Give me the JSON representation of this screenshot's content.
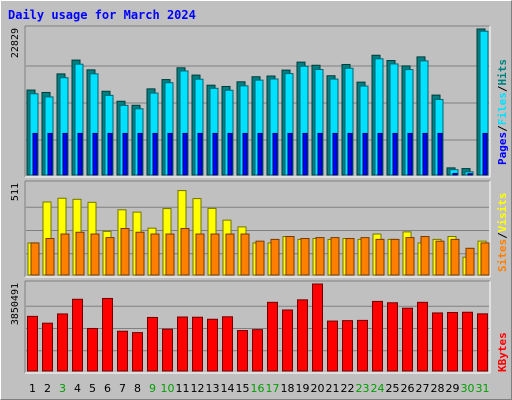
{
  "chart_data": {
    "type": "bar",
    "title": "Daily usage for March 2024",
    "categories": [
      "1",
      "2",
      "3",
      "4",
      "5",
      "6",
      "7",
      "8",
      "9",
      "10",
      "11",
      "12",
      "13",
      "14",
      "15",
      "16",
      "17",
      "18",
      "19",
      "20",
      "21",
      "22",
      "23",
      "24",
      "25",
      "26",
      "27",
      "28",
      "29",
      "30",
      "31"
    ],
    "weekend_days": [
      "3",
      "9",
      "10",
      "16",
      "17",
      "23",
      "24",
      "30",
      "31"
    ],
    "panels": [
      {
        "name": "hits_files_pages",
        "axis_max_label": "22829",
        "ymax": 22829,
        "series": [
          {
            "name": "Hits",
            "color": "#008080",
            "values": [
              13280,
              12906,
              15810,
              17968,
              16442,
              13093,
              11529,
              10905,
              13467,
              14920,
              16763,
              15623,
              14041,
              13842,
              14574,
              15365,
              15477,
              16403,
              17649,
              17158,
              15522,
              17283,
              14522,
              18723,
              17899,
              17059,
              18469,
              12495,
              1115,
              1003,
              22829
            ]
          },
          {
            "name": "Files",
            "color": "#00e0ff",
            "values": [
              12706,
              12209,
              15213,
              17323,
              15821,
              12446,
              10885,
              10352,
              12808,
              14423,
              16266,
              14978,
              13554,
              13245,
              13938,
              14834,
              15012,
              15855,
              17003,
              16491,
              14995,
              16686,
              13903,
              18166,
              17365,
              16479,
              17841,
              11805,
              836,
              502,
              22481
            ]
          },
          {
            "name": "Pages",
            "color": "#0000ff",
            "values": [
              6500,
              6500,
              6500,
              6500,
              6500,
              6500,
              6500,
              6500,
              6500,
              6500,
              6500,
              6500,
              6500,
              6500,
              6500,
              6500,
              6500,
              6500,
              6500,
              6500,
              6500,
              6500,
              6500,
              6500,
              6500,
              6500,
              6500,
              6500,
              240,
              200,
              6500
            ]
          }
        ]
      },
      {
        "name": "visits_sites",
        "axis_max_label": "511",
        "ymax": 511,
        "series": [
          {
            "name": "Visits",
            "color": "#ffff00",
            "values": [
              180,
              410,
              431,
              425,
              408,
              245,
              366,
              353,
              263,
              373,
              474,
              429,
              374,
              308,
              270,
              180,
              180,
              216,
              200,
              205,
              200,
              205,
              200,
              230,
              200,
              242,
              180,
              200,
              216,
              100,
              190
            ]
          },
          {
            "name": "Sites",
            "color": "#ff8000",
            "values": [
              180,
              205,
              230,
              240,
              230,
              210,
              261,
              240,
              230,
              230,
              261,
              230,
              230,
              230,
              230,
              190,
              200,
              216,
              205,
              210,
              210,
              205,
              210,
              200,
              200,
              210,
              216,
              190,
              200,
              150,
              180
            ]
          }
        ]
      },
      {
        "name": "kbytes",
        "axis_max_label": "3850491",
        "ymax": 3850491,
        "series": [
          {
            "name": "KBytes",
            "color": "#ff0000",
            "values": [
              2418140,
              2116101,
              2526112,
              3174120,
              1882121,
              3210100,
              1760000,
              1700000,
              2370000,
              1850000,
              2390000,
              2380000,
              2290000,
              2400000,
              1790000,
              1830000,
              3040000,
              2700000,
              3150000,
              3850491,
              2210000,
              2230000,
              2240000,
              3080000,
              3020000,
              2780000,
              3040000,
              2570000,
              2590000,
              2600000,
              2530000
            ]
          }
        ]
      }
    ],
    "right_label_1": [
      "Pages",
      "/",
      "Files",
      "/",
      "Hits"
    ],
    "right_label_2": [
      "Sites",
      "/",
      "Visits"
    ],
    "right_label_3": "KBytes"
  }
}
